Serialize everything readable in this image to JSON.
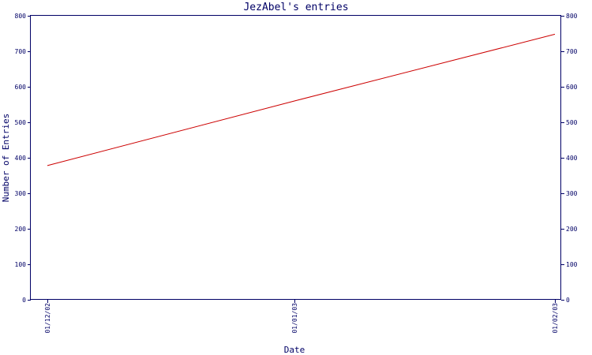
{
  "chart_data": {
    "type": "line",
    "title": "JezAbel's entries",
    "xlabel": "Date",
    "ylabel": "Number of Entries",
    "x": [
      "01/12/02",
      "01/01/03",
      "01/02/03"
    ],
    "series": [
      {
        "values": [
          378,
          560,
          748
        ],
        "color": "#cc0000"
      }
    ],
    "ylim": [
      0,
      800
    ],
    "yticks": [
      0,
      100,
      200,
      300,
      400,
      500,
      600,
      700,
      800
    ],
    "xtick_labels": [
      "01/12/02",
      "01/01/03",
      "01/02/03"
    ],
    "grid": false,
    "axis_color": "#000066",
    "text_color": "#000066",
    "background": "#ffffff"
  }
}
